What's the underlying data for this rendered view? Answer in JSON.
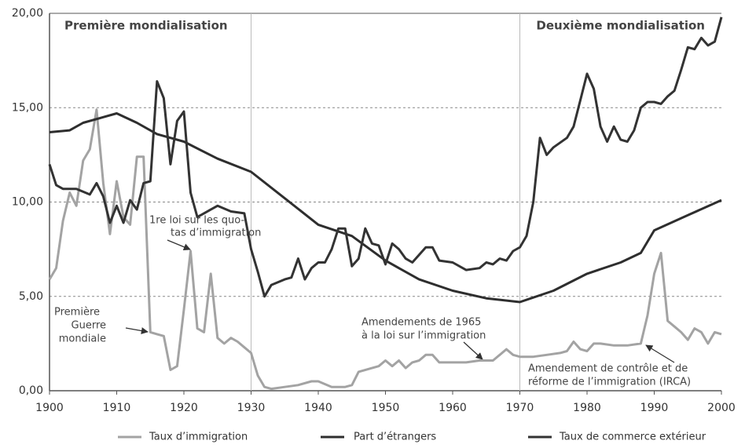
{
  "chart_data": {
    "type": "line",
    "xlim": [
      1900,
      2000
    ],
    "xticks": [
      1900,
      1910,
      1920,
      1930,
      1940,
      1950,
      1960,
      1970,
      1980,
      1990,
      2000
    ],
    "ylim": [
      0,
      20
    ],
    "yticks": [
      {
        "value": 0,
        "label": "0,00"
      },
      {
        "value": 5,
        "label": "5,00"
      },
      {
        "value": 10,
        "label": "10,00"
      },
      {
        "value": 15,
        "label": "15,00"
      },
      {
        "value": 20,
        "label": "20,00"
      }
    ],
    "grid": true,
    "vlines": [
      1930,
      1970
    ],
    "legend": "bottom",
    "series": [
      {
        "name": "Taux d’immigration",
        "color": "#a3a3a3",
        "x": [
          1900,
          1901,
          1902,
          1903,
          1904,
          1905,
          1906,
          1907,
          1908,
          1909,
          1910,
          1911,
          1912,
          1913,
          1914,
          1915,
          1916,
          1917,
          1918,
          1919,
          1920,
          1921,
          1922,
          1923,
          1924,
          1925,
          1926,
          1927,
          1928,
          1929,
          1930,
          1931,
          1932,
          1933,
          1935,
          1937,
          1939,
          1940,
          1942,
          1944,
          1945,
          1946,
          1948,
          1949,
          1950,
          1951,
          1952,
          1953,
          1954,
          1955,
          1956,
          1957,
          1958,
          1960,
          1962,
          1964,
          1966,
          1967,
          1968,
          1969,
          1970,
          1972,
          1974,
          1976,
          1977,
          1978,
          1979,
          1980,
          1981,
          1982,
          1984,
          1986,
          1988,
          1989,
          1990,
          1991,
          1992,
          1993,
          1994,
          1995,
          1996,
          1997,
          1998,
          1999,
          2000
        ],
        "values": [
          5.9,
          6.5,
          9.0,
          10.5,
          9.8,
          12.2,
          12.8,
          14.9,
          11.0,
          8.3,
          11.1,
          9.2,
          8.8,
          12.4,
          12.4,
          3.1,
          3.0,
          2.9,
          1.1,
          1.3,
          4.3,
          7.4,
          3.3,
          3.1,
          6.2,
          2.8,
          2.5,
          2.8,
          2.6,
          2.3,
          2.0,
          0.8,
          0.2,
          0.1,
          0.2,
          0.3,
          0.5,
          0.5,
          0.2,
          0.2,
          0.3,
          1.0,
          1.2,
          1.3,
          1.6,
          1.3,
          1.6,
          1.2,
          1.5,
          1.6,
          1.9,
          1.9,
          1.5,
          1.5,
          1.5,
          1.6,
          1.6,
          1.9,
          2.2,
          1.9,
          1.8,
          1.8,
          1.9,
          2.0,
          2.1,
          2.6,
          2.2,
          2.1,
          2.5,
          2.5,
          2.4,
          2.4,
          2.5,
          4.0,
          6.2,
          7.3,
          3.7,
          3.4,
          3.1,
          2.7,
          3.3,
          3.1,
          2.5,
          3.1,
          3.0
        ]
      },
      {
        "name": "Part d’étrangers",
        "color": "#2e2e2e",
        "x": [
          1900,
          1903,
          1905,
          1908,
          1910,
          1913,
          1916,
          1920,
          1925,
          1930,
          1935,
          1940,
          1945,
          1950,
          1955,
          1960,
          1965,
          1970,
          1975,
          1980,
          1985,
          1988,
          1990,
          1995,
          2000
        ],
        "values": [
          13.7,
          13.8,
          14.2,
          14.5,
          14.7,
          14.2,
          13.6,
          13.2,
          12.3,
          11.6,
          10.2,
          8.8,
          8.2,
          6.9,
          5.9,
          5.3,
          4.9,
          4.7,
          5.3,
          6.2,
          6.8,
          7.3,
          8.5,
          9.3,
          10.1
        ]
      },
      {
        "name": "Taux de commerce extérieur",
        "color": "#333333",
        "x": [
          1900,
          1901,
          1902,
          1904,
          1906,
          1907,
          1908,
          1909,
          1910,
          1911,
          1912,
          1913,
          1914,
          1915,
          1916,
          1917,
          1918,
          1919,
          1920,
          1921,
          1922,
          1923,
          1924,
          1925,
          1927,
          1929,
          1930,
          1931,
          1932,
          1933,
          1935,
          1936,
          1937,
          1938,
          1939,
          1940,
          1941,
          1942,
          1943,
          1944,
          1945,
          1946,
          1947,
          1948,
          1949,
          1950,
          1951,
          1952,
          1953,
          1954,
          1956,
          1957,
          1958,
          1960,
          1962,
          1964,
          1965,
          1966,
          1967,
          1968,
          1969,
          1970,
          1971,
          1972,
          1973,
          1974,
          1975,
          1977,
          1978,
          1979,
          1980,
          1981,
          1982,
          1983,
          1984,
          1985,
          1986,
          1987,
          1988,
          1989,
          1990,
          1991,
          1992,
          1993,
          1994,
          1995,
          1996,
          1997,
          1998,
          1999,
          2000
        ],
        "values": [
          12.0,
          10.9,
          10.7,
          10.7,
          10.4,
          11.0,
          10.3,
          8.9,
          9.8,
          8.9,
          10.1,
          9.6,
          11.0,
          11.1,
          16.4,
          15.5,
          12.0,
          14.3,
          14.8,
          10.5,
          9.2,
          9.4,
          9.6,
          9.8,
          9.5,
          9.4,
          7.5,
          6.3,
          5.0,
          5.6,
          5.9,
          6.0,
          7.0,
          5.9,
          6.5,
          6.8,
          6.8,
          7.5,
          8.6,
          8.6,
          6.6,
          7.0,
          8.6,
          7.8,
          7.7,
          6.7,
          7.8,
          7.5,
          7.0,
          6.8,
          7.6,
          7.6,
          6.9,
          6.8,
          6.4,
          6.5,
          6.8,
          6.7,
          7.0,
          6.9,
          7.4,
          7.6,
          8.2,
          10.0,
          13.4,
          12.5,
          12.9,
          13.4,
          14.0,
          15.4,
          16.8,
          16.0,
          14.0,
          13.2,
          14.0,
          13.3,
          13.2,
          13.8,
          15.0,
          15.3,
          15.3,
          15.2,
          15.6,
          15.9,
          17.0,
          18.2,
          18.1,
          18.7,
          18.3,
          18.5,
          19.8
        ]
      }
    ],
    "annotations": [
      {
        "lines": [
          "Première mondialisation"
        ]
      },
      {
        "lines": [
          "Deuxième mondialisation"
        ]
      },
      {
        "lines": [
          "1re loi sur les quo-",
          "tas d’immigration"
        ]
      },
      {
        "lines": [
          "Première",
          "Guerre",
          "mondiale"
        ]
      },
      {
        "lines": [
          "Amendements de 1965",
          "à la loi sur l’immigration"
        ]
      },
      {
        "lines": [
          "Amendement de contrôle et de",
          "réforme de l’immigration (IRCA)"
        ]
      }
    ]
  }
}
